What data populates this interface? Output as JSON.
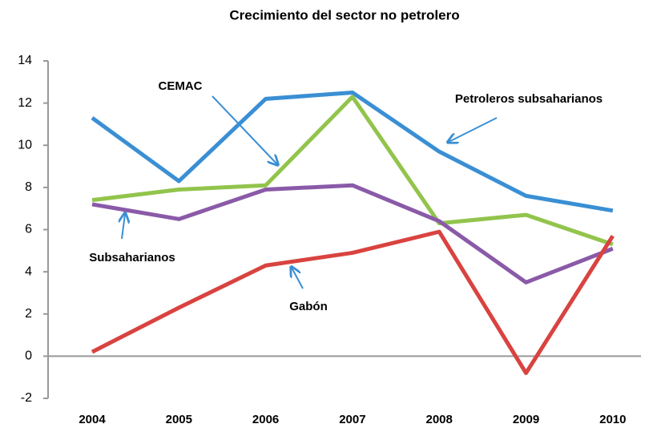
{
  "chart_data": {
    "type": "line",
    "title": "Crecimiento del sector no petrolero",
    "categories": [
      "2004",
      "2005",
      "2006",
      "2007",
      "2008",
      "2009",
      "2010"
    ],
    "series": [
      {
        "name": "Petroleros subsaharianos",
        "color": "#3a8fd4",
        "values": [
          11.3,
          8.3,
          12.2,
          12.5,
          9.7,
          7.6,
          6.9
        ]
      },
      {
        "name": "CEMAC",
        "color": "#92c44c",
        "values": [
          7.4,
          7.9,
          8.1,
          12.3,
          6.3,
          6.7,
          5.3
        ]
      },
      {
        "name": "Subsaharianos",
        "color": "#8a5aa8",
        "values": [
          7.2,
          6.5,
          7.9,
          8.1,
          6.4,
          3.5,
          5.1
        ]
      },
      {
        "name": "Gabón",
        "color": "#d9433f",
        "values": [
          0.2,
          2.3,
          4.3,
          4.9,
          5.9,
          -0.8,
          5.7
        ]
      }
    ],
    "ylim": [
      -2,
      14
    ],
    "yticks": [
      -2,
      0,
      2,
      4,
      6,
      8,
      10,
      12,
      14
    ],
    "grid": false
  }
}
